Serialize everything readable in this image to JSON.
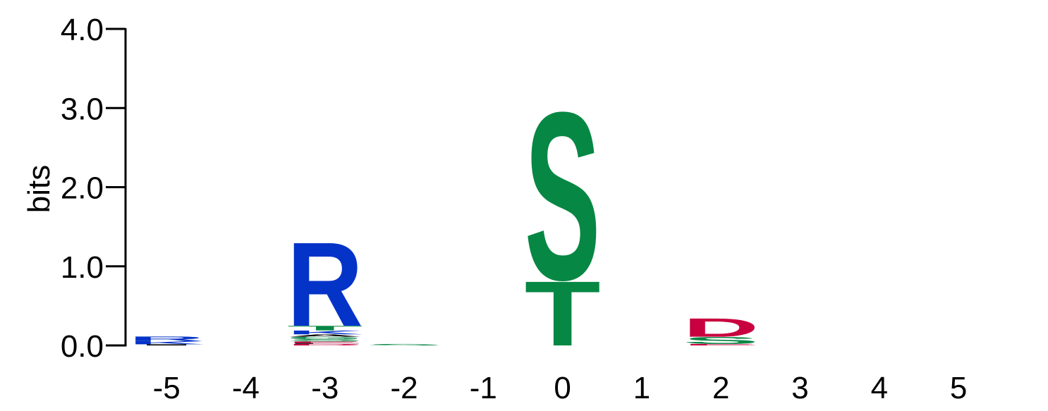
{
  "chart_data": {
    "type": "sequence-logo",
    "title": "",
    "xlabel": "",
    "ylabel": "bits",
    "ylim": [
      0,
      4.0
    ],
    "y_ticks": [
      "0.0",
      "1.0",
      "2.0",
      "3.0",
      "4.0"
    ],
    "positions": [
      "-5",
      "-4",
      "-3",
      "-2",
      "-1",
      "0",
      "1",
      "2",
      "3",
      "4",
      "5"
    ],
    "columns": [
      {
        "position": "-5",
        "stack": [
          {
            "letter": "I",
            "bits": 0.015,
            "color": "#000000"
          },
          {
            "letter": "K",
            "bits": 0.04,
            "color": "#0433c8"
          },
          {
            "letter": "R",
            "bits": 0.06,
            "color": "#0433c8"
          }
        ]
      },
      {
        "position": "-4",
        "stack": []
      },
      {
        "position": "-3",
        "stack": [
          {
            "letter": "D",
            "bits": 0.02,
            "color": "#c8003f"
          },
          {
            "letter": "L",
            "bits": 0.01,
            "color": "#000000"
          },
          {
            "letter": "E",
            "bits": 0.02,
            "color": "#c8003f"
          },
          {
            "letter": "S",
            "bits": 0.03,
            "color": "#078744"
          },
          {
            "letter": "G",
            "bits": 0.03,
            "color": "#078744"
          },
          {
            "letter": "A",
            "bits": 0.03,
            "color": "#000000"
          },
          {
            "letter": "K",
            "bits": 0.05,
            "color": "#0433c8"
          },
          {
            "letter": "T",
            "bits": 0.06,
            "color": "#078744"
          },
          {
            "letter": "R",
            "bits": 1.09,
            "color": "#0433c8"
          }
        ]
      },
      {
        "position": "-2",
        "stack": [
          {
            "letter": "S",
            "bits": 0.02,
            "color": "#078744"
          }
        ]
      },
      {
        "position": "-1",
        "stack": []
      },
      {
        "position": "0",
        "stack": [
          {
            "letter": "T",
            "bits": 0.84,
            "color": "#078744"
          },
          {
            "letter": "S",
            "bits": 2.18,
            "color": "#078744"
          }
        ]
      },
      {
        "position": "1",
        "stack": []
      },
      {
        "position": "2",
        "stack": [
          {
            "letter": "E",
            "bits": 0.02,
            "color": "#c8003f"
          },
          {
            "letter": "S",
            "bits": 0.09,
            "color": "#078744"
          },
          {
            "letter": "D",
            "bits": 0.24,
            "color": "#c8003f"
          }
        ]
      },
      {
        "position": "3",
        "stack": []
      },
      {
        "position": "4",
        "stack": []
      },
      {
        "position": "5",
        "stack": []
      }
    ]
  }
}
